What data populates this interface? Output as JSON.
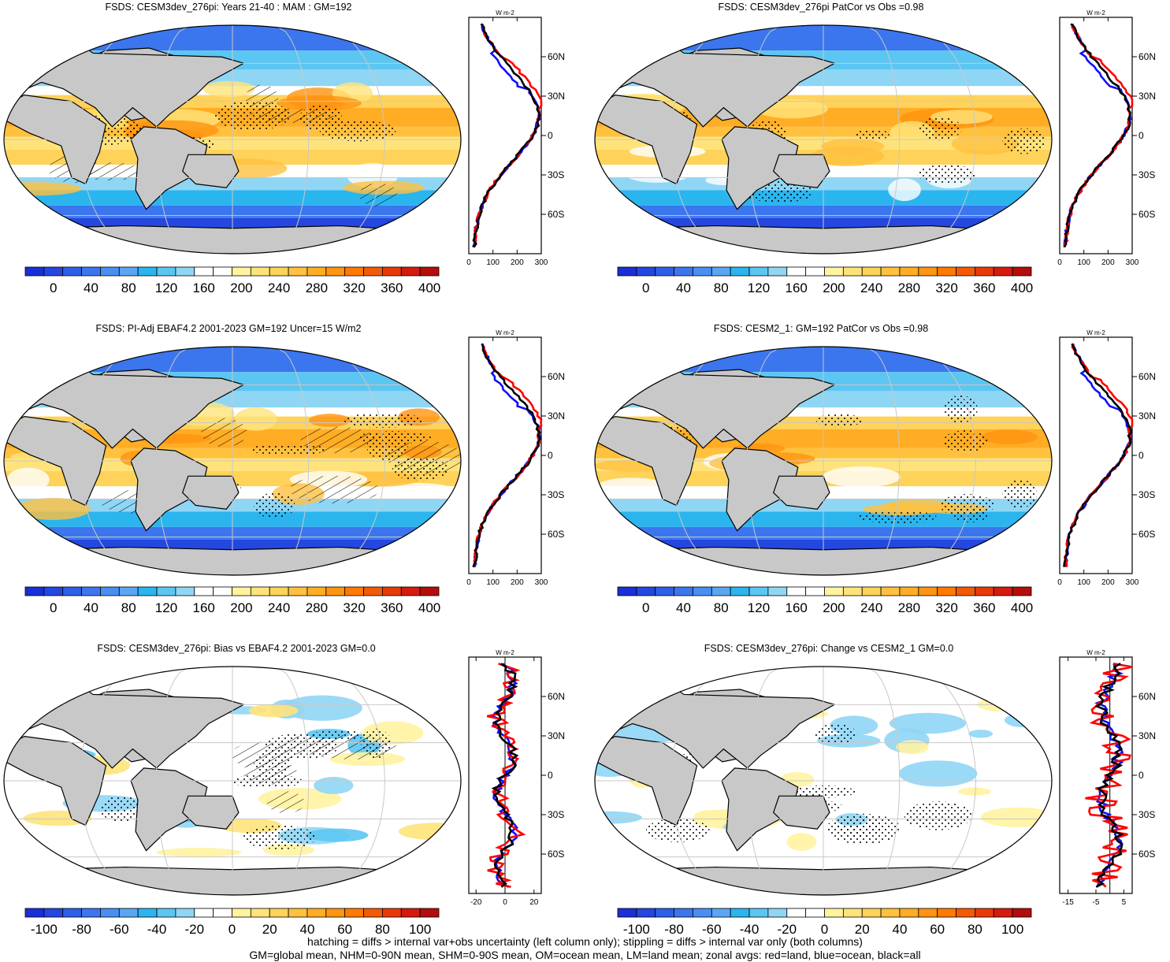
{
  "panels": [
    {
      "title": "FSDS: CESM3dev_276pi: Years 21-40 : MAM : GM=192",
      "mode": "abs",
      "seed": 1,
      "hatch": true
    },
    {
      "title": "FSDS: CESM3dev_276pi PatCor vs Obs =0.98",
      "mode": "abs",
      "seed": 2,
      "hatch": false
    },
    {
      "title": "FSDS: PI-Adj EBAF4.2 2001-2023 GM=192 Uncer=15 W/m2",
      "mode": "abs",
      "seed": 3,
      "hatch": true
    },
    {
      "title": "FSDS: CESM2_1: GM=192 PatCor vs Obs =0.98",
      "mode": "abs",
      "seed": 4,
      "hatch": false
    },
    {
      "title": "FSDS: CESM3dev_276pi: Bias vs EBAF4.2 2001-2023 GM=0.0",
      "mode": "bias",
      "seed": 5,
      "hatch": true
    },
    {
      "title": "FSDS: CESM3dev_276pi: Change vs CESM2_1 GM=0.0",
      "mode": "change",
      "seed": 6,
      "hatch": false
    }
  ],
  "colorbar_abs": {
    "labels": [
      "0",
      "40",
      "80",
      "120",
      "160",
      "200",
      "240",
      "280",
      "320",
      "360",
      "400"
    ],
    "colors": [
      "#1a2fd6",
      "#2447e0",
      "#2f5fe8",
      "#3b76ee",
      "#4a8ef2",
      "#5aa6f4",
      "#2bb5ef",
      "#5cc6f2",
      "#8fd6f5",
      "#ffffff",
      "#ffffff",
      "#fff3a0",
      "#ffe37a",
      "#ffd25a",
      "#ffc13e",
      "#ffad25",
      "#ff9410",
      "#ff7a05",
      "#f25a05",
      "#e63a0a",
      "#d51a0e",
      "#b50d0d"
    ]
  },
  "colorbar_bias": {
    "labels": [
      "-100",
      "-80",
      "-60",
      "-40",
      "-20",
      "0",
      "20",
      "40",
      "60",
      "80",
      "100"
    ]
  },
  "zonal": {
    "lat_labels": [
      "60N",
      "30N",
      "0",
      "30S",
      "60S"
    ],
    "unit": "W m-2",
    "abs_x_ticks": [
      "0",
      "100",
      "200",
      "300"
    ],
    "bias_x_ticks": [
      "-20",
      "0",
      "20"
    ],
    "change_x_ticks": [
      "-15",
      "-5",
      "5"
    ],
    "colors": {
      "land": "#ff0000",
      "ocean": "#1010ff",
      "all": "#000000"
    }
  },
  "colors": {
    "land": "#c8c8c8",
    "coast": "#000000",
    "grid": "#c8c8c8"
  },
  "footer": [
    "hatching = diffs > internal var+obs uncertainty (left column only); stippling = diffs > internal var only (both columns)",
    "GM=global mean, NHM=0-90N mean, SHM=0-90S mean, OM=ocean mean, LM=land mean; zonal avgs: red=land, blue=ocean, black=all"
  ]
}
